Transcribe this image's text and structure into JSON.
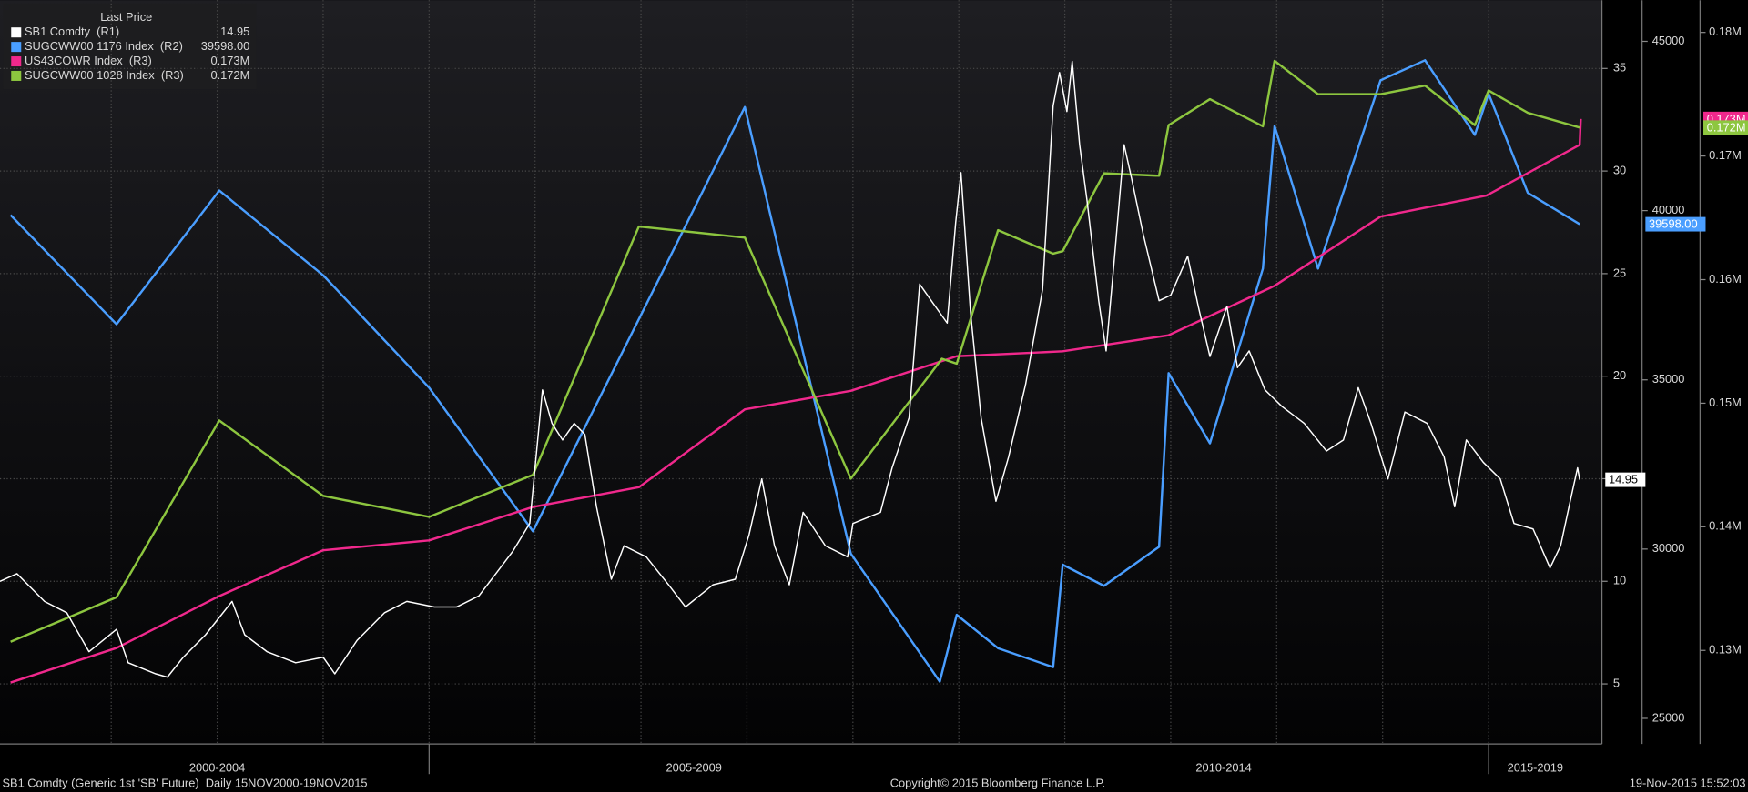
{
  "chart_data": {
    "type": "line",
    "legend_title": "Last Price",
    "legend": "top-left",
    "grid": true,
    "xlim": [
      2000.95,
      2016.07
    ],
    "xgrid": [
      2002,
      2003,
      2004,
      2005,
      2006,
      2007,
      2008,
      2009,
      2010,
      2011,
      2012,
      2013,
      2014,
      2015
    ],
    "xticks": [
      {
        "value": 2003,
        "label": "2000-2004"
      },
      {
        "value": 2007.5,
        "label": "2005-2009"
      },
      {
        "value": 2012.5,
        "label": "2010-2014"
      },
      {
        "value": 2015.44,
        "label": "2015-2019"
      }
    ],
    "x_separators": [
      2005,
      2015
    ],
    "ylim": [
      2.07,
      38.33
    ],
    "yticks": [
      5,
      10,
      15,
      20,
      25,
      30,
      35
    ],
    "y2lim": [
      24243,
      46217
    ],
    "y2ticks": [
      25000,
      30000,
      35000,
      40000,
      45000
    ],
    "y3lim": [
      0.12243,
      0.18261
    ],
    "y3ticks": [
      {
        "value": 0.13,
        "label": "0.13M"
      },
      {
        "value": 0.14,
        "label": "0.14M"
      },
      {
        "value": 0.15,
        "label": "0.15M"
      },
      {
        "value": 0.16,
        "label": "0.16M"
      },
      {
        "value": 0.17,
        "label": "0.17M"
      },
      {
        "value": 0.18,
        "label": "0.18M"
      }
    ],
    "series": [
      {
        "name": "SB1 Comdty  (R1)",
        "color": "#ffffff",
        "axis": "y",
        "last_label": "14.95",
        "x": [
          2000.95,
          2001.11,
          2001.37,
          2001.58,
          2001.79,
          2002.05,
          2002.16,
          2002.42,
          2002.53,
          2002.68,
          2002.89,
          2003.14,
          2003.26,
          2003.47,
          2003.74,
          2004.0,
          2004.11,
          2004.32,
          2004.58,
          2004.79,
          2005.05,
          2005.26,
          2005.47,
          2005.63,
          2005.79,
          2005.95,
          2006.07,
          2006.16,
          2006.26,
          2006.37,
          2006.47,
          2006.58,
          2006.72,
          2006.84,
          2007.05,
          2007.26,
          2007.42,
          2007.68,
          2007.89,
          2008.02,
          2008.14,
          2008.26,
          2008.4,
          2008.53,
          2008.74,
          2008.95,
          2009.0,
          2009.26,
          2009.37,
          2009.53,
          2009.63,
          2009.74,
          2009.89,
          2009.97,
          2010.02,
          2010.11,
          2010.21,
          2010.35,
          2010.47,
          2010.63,
          2010.79,
          2010.89,
          2010.95,
          2011.02,
          2011.07,
          2011.14,
          2011.21,
          2011.32,
          2011.39,
          2011.47,
          2011.56,
          2011.63,
          2011.74,
          2011.89,
          2012.0,
          2012.16,
          2012.26,
          2012.37,
          2012.53,
          2012.63,
          2012.74,
          2012.89,
          2013.05,
          2013.26,
          2013.47,
          2013.63,
          2013.77,
          2013.89,
          2014.05,
          2014.21,
          2014.42,
          2014.58,
          2014.68,
          2014.79,
          2014.95,
          2015.11,
          2015.24,
          2015.42,
          2015.58,
          2015.68,
          2015.77,
          2015.84,
          2015.86
        ],
        "values": [
          10.0,
          10.37,
          9.02,
          8.47,
          6.57,
          7.66,
          6.03,
          5.49,
          5.33,
          6.3,
          7.39,
          9.02,
          7.39,
          6.57,
          6.03,
          6.3,
          5.49,
          7.12,
          8.47,
          9.02,
          8.75,
          8.75,
          9.29,
          10.37,
          11.46,
          12.82,
          19.33,
          17.7,
          16.89,
          17.7,
          17.16,
          13.63,
          10.1,
          11.73,
          11.19,
          9.83,
          8.75,
          9.83,
          10.1,
          12.27,
          14.99,
          11.73,
          9.83,
          13.36,
          11.73,
          11.19,
          12.82,
          13.36,
          15.53,
          17.97,
          24.49,
          23.68,
          22.59,
          27.48,
          29.92,
          23.13,
          17.97,
          13.9,
          16.07,
          19.6,
          24.22,
          33.18,
          34.8,
          32.9,
          35.35,
          31.28,
          28.56,
          23.68,
          21.23,
          25.85,
          31.28,
          29.65,
          26.93,
          23.68,
          23.95,
          25.85,
          23.4,
          20.96,
          23.4,
          20.42,
          21.23,
          19.33,
          18.52,
          17.7,
          16.35,
          16.89,
          19.44,
          17.7,
          14.99,
          18.25,
          17.7,
          16.07,
          13.63,
          16.89,
          15.8,
          14.99,
          12.82,
          12.55,
          10.65,
          11.73,
          13.9,
          15.53,
          14.95
        ]
      },
      {
        "name": "SUGCWW00 1176 Index  (R2)",
        "color": "#4a9eff",
        "axis": "y2",
        "last_label": "39598.00",
        "x": [
          2001.05,
          2002.05,
          2003.02,
          2004.0,
          2005.0,
          2005.98,
          2007.98,
          2008.98,
          2009.82,
          2009.98,
          2010.37,
          2010.89,
          2010.98,
          2011.37,
          2011.89,
          2011.98,
          2012.37,
          2012.87,
          2012.98,
          2013.39,
          2013.98,
          2014.4,
          2014.87,
          2015.0,
          2015.37,
          2015.86
        ],
        "values": [
          39868,
          36645,
          40592,
          38092,
          34770,
          30526,
          43059,
          29868,
          26086,
          28059,
          27072,
          26513,
          29539,
          28914,
          30066,
          35197,
          33125,
          38289,
          42500,
          38289,
          43849,
          44441,
          42237,
          43454,
          40526,
          39598
        ]
      },
      {
        "name": "US43COWR Index  (R3)",
        "color": "#f0288c",
        "axis": "y3",
        "last_label": "0.173M",
        "x": [
          2001.05,
          2002.05,
          2003.02,
          2004.0,
          2005.0,
          2005.98,
          2006.98,
          2007.98,
          2008.98,
          2009.98,
          2010.98,
          2011.98,
          2012.98,
          2013.98,
          2014.98,
          2015.86,
          2015.87
        ],
        "values": [
          0.1274,
          0.1302,
          0.1344,
          0.1381,
          0.1389,
          0.1416,
          0.1432,
          0.1495,
          0.151,
          0.1538,
          0.1542,
          0.1555,
          0.1595,
          0.1651,
          0.1668,
          0.1709,
          0.173
        ]
      },
      {
        "name": "SUGCWW00 1028 Index  (R3)",
        "color": "#8dc63f",
        "axis": "y3",
        "last_label": "0.172M",
        "x": [
          2001.05,
          2002.05,
          2003.02,
          2004.0,
          2005.0,
          2005.98,
          2006.98,
          2007.98,
          2008.98,
          2009.84,
          2009.98,
          2010.37,
          2010.89,
          2010.98,
          2011.37,
          2011.89,
          2011.98,
          2012.37,
          2012.87,
          2012.98,
          2013.39,
          2013.98,
          2014.4,
          2014.87,
          2015.0,
          2015.37,
          2015.86
        ],
        "values": [
          0.1307,
          0.1343,
          0.1486,
          0.1425,
          0.1408,
          0.1442,
          0.1643,
          0.1634,
          0.1439,
          0.1536,
          0.1532,
          0.164,
          0.1621,
          0.1623,
          0.1686,
          0.1684,
          0.1725,
          0.1746,
          0.1724,
          0.1777,
          0.175,
          0.175,
          0.1757,
          0.1725,
          0.1753,
          0.1735,
          0.1723
        ]
      }
    ],
    "footer_left": "SB1 Comdty (Generic 1st 'SB' Future)  Daily 15NOV2000-19NOV2015",
    "copyright": "Copyright© 2015 Bloomberg Finance L.P.",
    "timestamp": "19-Nov-2015 15:52:03"
  }
}
